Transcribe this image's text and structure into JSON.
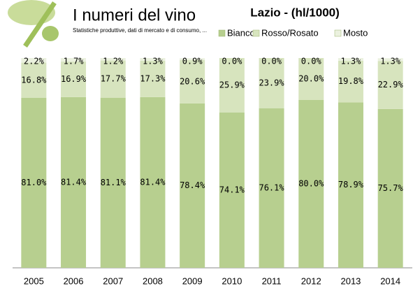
{
  "logo": {
    "title": "I numeri del vino",
    "subtitle": "Statistiche produttive, dati di mercato e di consumo, ..."
  },
  "chart_data": {
    "type": "stacked-bar",
    "title": "Lazio - (hl/1000)",
    "categories": [
      "2005",
      "2006",
      "2007",
      "2008",
      "2009",
      "2010",
      "2011",
      "2012",
      "2013",
      "2014"
    ],
    "ylim": [
      0,
      100
    ],
    "series": [
      {
        "name": "Bianco",
        "color": "#b7cf8f",
        "values": [
          81.0,
          81.4,
          81.1,
          81.4,
          78.4,
          74.1,
          76.1,
          80.0,
          78.9,
          75.7
        ],
        "value_labels": [
          "81.0%",
          "81.4%",
          "81.1%",
          "81.4%",
          "78.4%",
          "74.1%",
          "76.1%",
          "80.0%",
          "78.9%",
          "75.7%"
        ]
      },
      {
        "name": "Rosso/Rosato",
        "color": "#d7e4be",
        "values": [
          16.8,
          16.9,
          17.7,
          17.3,
          20.6,
          25.9,
          23.9,
          20.0,
          19.8,
          22.9
        ],
        "value_labels": [
          "16.8%",
          "16.9%",
          "17.7%",
          "17.3%",
          "20.6%",
          "25.9%",
          "23.9%",
          "20.0%",
          "19.8%",
          "22.9%"
        ]
      },
      {
        "name": "Mosto",
        "color": "#ebf1df",
        "values": [
          2.2,
          1.7,
          1.2,
          1.3,
          0.9,
          0.0,
          0.0,
          0.0,
          1.3,
          1.3
        ],
        "value_labels": [
          "2.2%",
          "1.7%",
          "1.2%",
          "1.3%",
          "0.9%",
          "0.0%",
          "0.0%",
          "0.0%",
          "1.3%",
          "1.3%"
        ]
      }
    ],
    "legend": "top"
  }
}
